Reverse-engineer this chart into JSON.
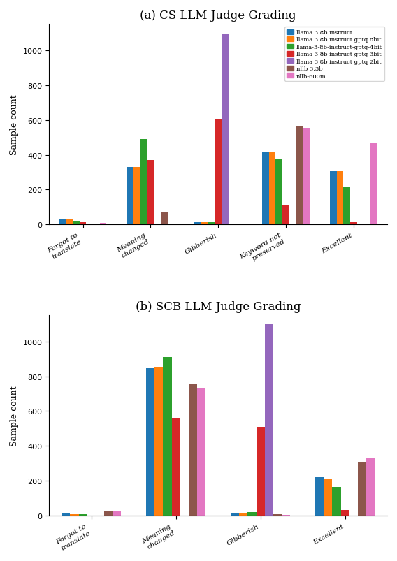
{
  "title_a": "(a) CS LLM Judge Grading",
  "title_b": "(b) SCB LLM Judge Grading",
  "ylabel": "Sample count",
  "categories_a": [
    "Forgot to\ntranslate",
    "Meaning\nchanged",
    "Gibberish",
    "Keyword not\npreserved",
    "Excellent"
  ],
  "categories_b": [
    "Forgot to\ntranslate",
    "Meaning\nchanged",
    "Gibberish",
    "Excellent"
  ],
  "legend_labels": [
    "llama 3 8b instruct",
    "llama 3 8b instruct gptq 8bit",
    "llama-3-8b-instruct-gptq-4bit",
    "llama 3 8b instruct gptq 3bit",
    "llama 3 8b instruct gptq 2bit",
    "nllb 3.3b",
    "nllb-600m"
  ],
  "colors": [
    "#1f77b4",
    "#ff7f0e",
    "#2ca02c",
    "#d62728",
    "#9467bd",
    "#8c564b",
    "#e377c2"
  ],
  "data_a": [
    [
      30,
      330,
      15,
      415,
      305
    ],
    [
      30,
      330,
      15,
      420,
      308
    ],
    [
      20,
      490,
      15,
      380,
      215
    ],
    [
      15,
      370,
      605,
      110,
      12
    ],
    [
      5,
      0,
      1090,
      0,
      0
    ],
    [
      5,
      70,
      0,
      565,
      0
    ],
    [
      10,
      0,
      0,
      555,
      465
    ]
  ],
  "data_b": [
    [
      15,
      845,
      15,
      220
    ],
    [
      10,
      855,
      15,
      210
    ],
    [
      8,
      910,
      20,
      165
    ],
    [
      2,
      560,
      510,
      35
    ],
    [
      0,
      0,
      1100,
      0
    ],
    [
      30,
      760,
      10,
      305
    ],
    [
      28,
      730,
      5,
      335
    ]
  ],
  "ylim_a": [
    0,
    1150
  ],
  "ylim_b": [
    0,
    1150
  ],
  "yticks_a": [
    0,
    200,
    400,
    600,
    800,
    1000
  ],
  "yticks_b": [
    0,
    200,
    400,
    600,
    800,
    1000
  ],
  "figsize": [
    5.68,
    8.04
  ],
  "dpi": 100
}
